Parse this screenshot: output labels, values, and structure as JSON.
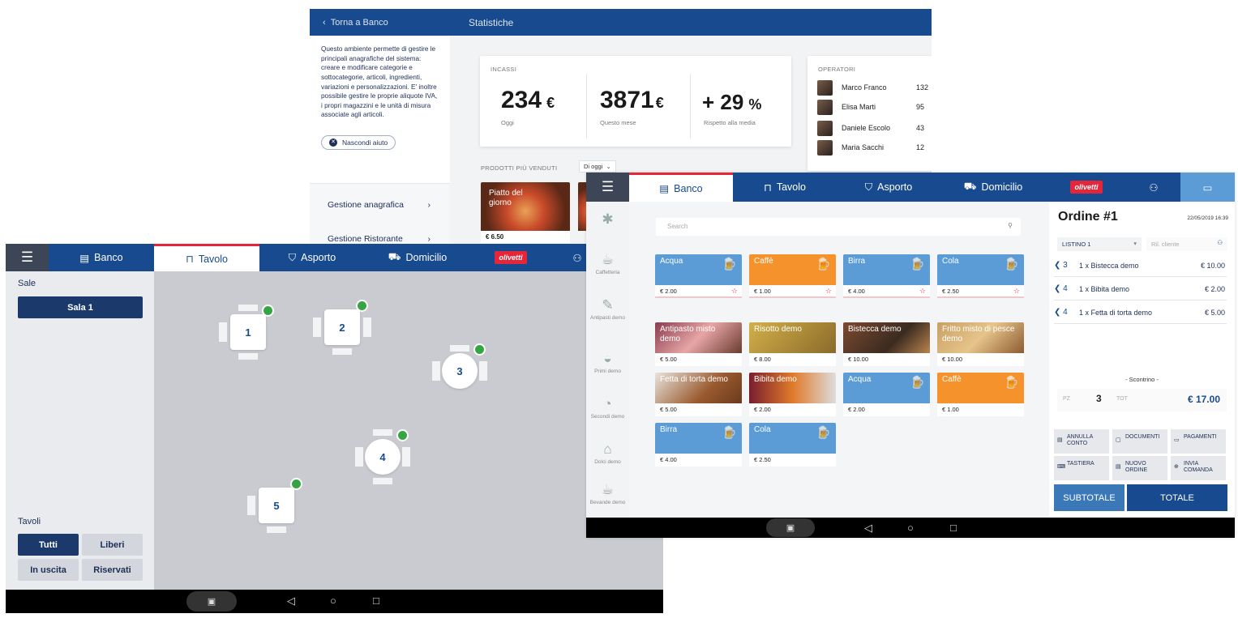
{
  "stats": {
    "back_label": "Torna a Banco",
    "title": "Statistiche",
    "help_text": "Questo ambiente permette di gestire le principali anagrafiche del sistema: creare e modificare categorie e sottocategorie, articoli, ingredienti, variazioni e personalizzazioni. E' inoltre possibile gestire le proprie aliquote IVA, i propri magazzini e le unità di misura associate agli articoli.",
    "hide_help": "Nascondi aiuto",
    "menu": [
      "Gestione anagrafica",
      "Gestione Ristorante"
    ],
    "incassi": {
      "caption": "INCASSI",
      "kpis": [
        {
          "value": "234",
          "unit": "€",
          "label": "Oggi"
        },
        {
          "value": "3871",
          "unit": "€",
          "label": "Questo mese"
        },
        {
          "value": "+ 29",
          "unit": "%",
          "label": "Rispetto alla media"
        }
      ]
    },
    "operatori": {
      "caption": "OPERATORI",
      "rows": [
        {
          "name": "Marco Franco",
          "value": "132"
        },
        {
          "name": "Elisa Marti",
          "value": "95"
        },
        {
          "name": "Daniele Escolo",
          "value": "43"
        },
        {
          "name": "Maria Sacchi",
          "value": "12"
        }
      ]
    },
    "prodotti_caption": "PRODOTTI PIÙ VENDUTI",
    "period": "Di oggi",
    "prodotti": [
      {
        "name": "Piatto del giorno",
        "price": "€ 6.50"
      }
    ]
  },
  "tavolo": {
    "tabs": [
      "Banco",
      "Tavolo",
      "Asporto",
      "Domicilio"
    ],
    "brand": "olivetti",
    "sale_label": "Sale",
    "sala": "Sala 1",
    "tavoli_label": "Tavoli",
    "filters": [
      "Tutti",
      "Liberi",
      "In uscita",
      "Riservati"
    ],
    "tables": [
      "1",
      "2",
      "3",
      "4",
      "5"
    ]
  },
  "banco": {
    "tabs": [
      "Banco",
      "Tavolo",
      "Asporto",
      "Domicilio"
    ],
    "brand": "olivetti",
    "categories": [
      "Caffetteria",
      "Antipasti demo",
      "Primi demo",
      "Secondi demo",
      "Dolci demo",
      "Bevande demo"
    ],
    "search_placeholder": "Search",
    "products_row1": [
      {
        "name": "Acqua",
        "price": "€ 2.00"
      },
      {
        "name": "Caffè",
        "price": "€ 1.00"
      },
      {
        "name": "Birra",
        "price": "€ 4.00"
      },
      {
        "name": "Cola",
        "price": "€ 2.50"
      }
    ],
    "products_row2": [
      {
        "name": "Antipasto misto demo",
        "price": "€ 5.00"
      },
      {
        "name": "Risotto demo",
        "price": "€ 8.00"
      },
      {
        "name": "Bistecca demo",
        "price": "€ 10.00"
      },
      {
        "name": "Fritto misto di pesce demo",
        "price": "€ 10.00"
      }
    ],
    "products_row3": [
      {
        "name": "Fetta di torta demo",
        "price": "€ 5.00"
      },
      {
        "name": "Bibita demo",
        "price": "€ 2.00"
      },
      {
        "name": "Acqua",
        "price": "€ 2.00"
      },
      {
        "name": "Caffè",
        "price": "€ 1.00"
      }
    ],
    "products_row4": [
      {
        "name": "Birra",
        "price": "€ 4.00"
      },
      {
        "name": "Cola",
        "price": "€ 2.50"
      }
    ],
    "order": {
      "title": "Ordine #1",
      "date": "22/05/2019 16:39",
      "listino": "LISTINO 1",
      "cliente_placeholder": "Ril. cliente",
      "lines": [
        {
          "qty": "3",
          "desc": "1 x Bistecca demo",
          "price": "€ 10.00"
        },
        {
          "qty": "4",
          "desc": "1 x Bibita demo",
          "price": "€ 2.00"
        },
        {
          "qty": "4",
          "desc": "1 x Fetta di torta demo",
          "price": "€ 5.00"
        }
      ],
      "scontrino": "- Scontrino -",
      "pz_label": "PZ",
      "pz_value": "3",
      "tot_label": "TOT",
      "total": "€ 17.00",
      "actions": [
        "ANNULLA CONTO",
        "DOCUMENTI",
        "PAGAMENTI",
        "TASTIERA",
        "NUOVO ORDINE",
        "INVIA COMANDA"
      ],
      "subtotale": "SUBTOTALE",
      "totale": "TOTALE"
    }
  },
  "colors": {
    "primary": "#174a8f",
    "accent_red": "#e3263a",
    "orange": "#f5922b",
    "light_blue": "#5b9cd6",
    "status_green": "#37a443"
  }
}
